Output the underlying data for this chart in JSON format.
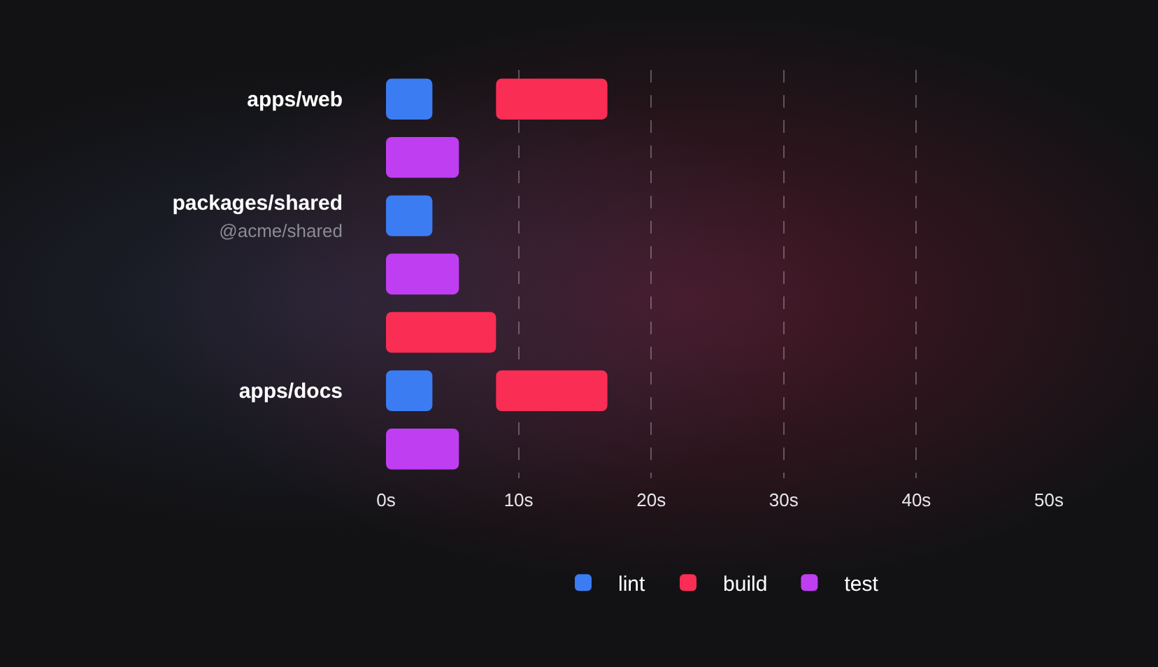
{
  "chart_data": {
    "type": "bar",
    "orientation": "horizontal",
    "categories": [
      "apps/web",
      null,
      "packages/shared\n@acme/shared",
      null,
      null,
      "apps/docs",
      null
    ],
    "series": [
      {
        "name": "lint",
        "color": "#3b7cf2",
        "values": [
          3.5,
          null,
          3.5,
          null,
          null,
          3.5,
          null
        ],
        "base": [
          0,
          null,
          0,
          null,
          null,
          0,
          null
        ]
      },
      {
        "name": "build",
        "color": "#fa2d55",
        "values": [
          8.4,
          null,
          null,
          null,
          8.3,
          8.4,
          null
        ],
        "base": [
          8.3,
          null,
          null,
          null,
          0,
          8.3,
          null
        ]
      },
      {
        "name": "test",
        "color": "#bf3ef2",
        "values": [
          null,
          5.5,
          null,
          5.5,
          null,
          null,
          5.5
        ],
        "base": [
          null,
          0,
          null,
          0,
          null,
          null,
          0
        ]
      }
    ],
    "xlim": [
      0,
      50
    ],
    "xticks": [
      {
        "value": 0,
        "label": "0s"
      },
      {
        "value": 10,
        "label": "10s"
      },
      {
        "value": 20,
        "label": "20s"
      },
      {
        "value": 30,
        "label": "30s"
      },
      {
        "value": 40,
        "label": "40s"
      },
      {
        "value": 50,
        "label": "50s"
      }
    ],
    "grid": "x",
    "legend": "bottom"
  }
}
